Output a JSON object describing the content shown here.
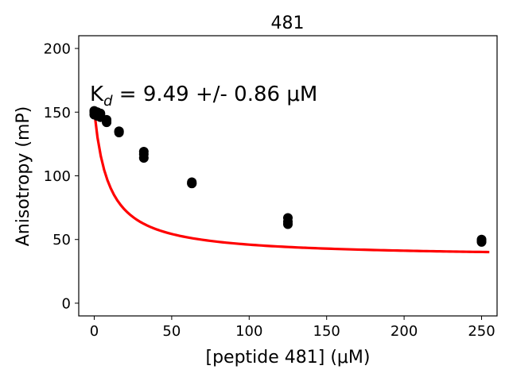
{
  "chart_data": {
    "type": "scatter",
    "title": "481",
    "xlabel": "[peptide 481] (μM)",
    "ylabel": "Anisotropy (mP)",
    "xlim": [
      -10,
      260
    ],
    "ylim": [
      -10,
      210
    ],
    "xticks": [
      0,
      50,
      100,
      150,
      200,
      250
    ],
    "yticks": [
      0,
      50,
      100,
      150,
      200
    ],
    "grid": false,
    "annotation": {
      "text_prefix": "K",
      "text_subscript": "d",
      "text_suffix": " = 9.49 +/- 0.86 μM"
    },
    "series": [
      {
        "type": "scatter",
        "color": "#000000",
        "points": [
          {
            "x": 0,
            "y": 148
          },
          {
            "x": 0,
            "y": 150
          },
          {
            "x": 0,
            "y": 151
          },
          {
            "x": 2,
            "y": 147
          },
          {
            "x": 2,
            "y": 149
          },
          {
            "x": 2,
            "y": 150
          },
          {
            "x": 4,
            "y": 146
          },
          {
            "x": 4,
            "y": 148
          },
          {
            "x": 4,
            "y": 149
          },
          {
            "x": 8,
            "y": 142
          },
          {
            "x": 8,
            "y": 143
          },
          {
            "x": 8,
            "y": 144
          },
          {
            "x": 16,
            "y": 134
          },
          {
            "x": 16,
            "y": 135
          },
          {
            "x": 16,
            "y": 135
          },
          {
            "x": 32,
            "y": 114
          },
          {
            "x": 32,
            "y": 117
          },
          {
            "x": 32,
            "y": 119
          },
          {
            "x": 63,
            "y": 94
          },
          {
            "x": 63,
            "y": 94
          },
          {
            "x": 63,
            "y": 95
          },
          {
            "x": 125,
            "y": 62
          },
          {
            "x": 125,
            "y": 64
          },
          {
            "x": 125,
            "y": 67
          },
          {
            "x": 250,
            "y": 48
          },
          {
            "x": 250,
            "y": 49
          },
          {
            "x": 250,
            "y": 50
          }
        ]
      },
      {
        "type": "line",
        "color": "#ff0000",
        "fit": {
          "model": "binding",
          "low": 36,
          "high": 151,
          "kd": 9.49,
          "x_start": 0,
          "x_end": 255
        }
      }
    ]
  }
}
